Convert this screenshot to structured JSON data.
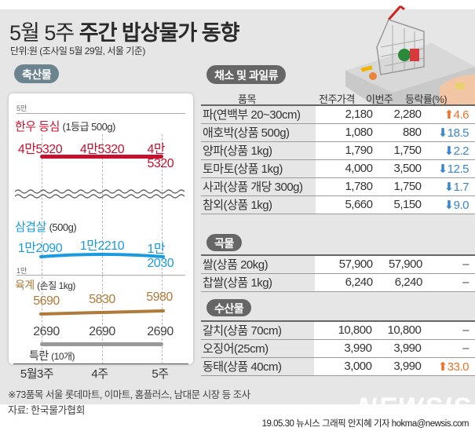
{
  "header": {
    "title_light": "5월 5주",
    "title_bold": "주간 밥상물가 동향",
    "unit": "단위:원 (조사일 5월 29일, 서울 기준)"
  },
  "sections": {
    "livestock": "축산물",
    "vegetables": "채소 및 과일류",
    "grains": "곡물",
    "seafood": "수산물"
  },
  "table_headers": {
    "item": "품목",
    "prev": "전주가격",
    "cur": "이번주",
    "change": "등락률(%)"
  },
  "chart_data": {
    "type": "line",
    "title": "축산물",
    "categories": [
      "5월3주",
      "4주",
      "5주"
    ],
    "axis_labels": {
      "upper_break": "5만",
      "lower_break": "1만"
    },
    "series": [
      {
        "name": "한우 등심",
        "unit": "(1등급 500g)",
        "color": "#c8102e",
        "values": [
          45320,
          45320,
          45320
        ],
        "labels": [
          "4만5320",
          "4만5320",
          "4만5320"
        ]
      },
      {
        "name": "삼겹살",
        "unit": "(500g)",
        "color": "#1a9be0",
        "values": [
          12090,
          12210,
          12030
        ],
        "labels": [
          "1만2090",
          "1만2210",
          "1만2030"
        ]
      },
      {
        "name": "육계",
        "unit": "(손질 1kg)",
        "color": "#b07a3a",
        "values": [
          5690,
          5830,
          5980
        ],
        "labels": [
          "5690",
          "5830",
          "5980"
        ]
      },
      {
        "name": "특란",
        "unit": "(10개)",
        "color": "#999999",
        "values": [
          2690,
          2690,
          2690
        ],
        "labels": [
          "2690",
          "2690",
          "2690"
        ]
      }
    ],
    "grid": "vertical dashed"
  },
  "vegetables": [
    {
      "item": "파(연백부 20~30cm)",
      "prev": "2,180",
      "cur": "2,280",
      "dir": "up",
      "change": "4.6"
    },
    {
      "item": "애호박(상품 500g)",
      "prev": "1,080",
      "cur": "880",
      "dir": "down",
      "change": "18.5"
    },
    {
      "item": "양파(상품 1kg)",
      "prev": "1,790",
      "cur": "1,750",
      "dir": "down",
      "change": "2.2"
    },
    {
      "item": "토마토(상품 1kg)",
      "prev": "4,000",
      "cur": "3,500",
      "dir": "down",
      "change": "12.5"
    },
    {
      "item": "사과(상품 개당 300g)",
      "prev": "1,780",
      "cur": "1,750",
      "dir": "down",
      "change": "1.7"
    },
    {
      "item": "참외(상품 1kg)",
      "prev": "5,660",
      "cur": "5,150",
      "dir": "down",
      "change": "9.0"
    }
  ],
  "grains": [
    {
      "item": "쌀(상품 20kg)",
      "prev": "57,900",
      "cur": "57,900",
      "dir": "none",
      "change": "–"
    },
    {
      "item": "찹쌀(상품 1kg)",
      "prev": "6,240",
      "cur": "6,240",
      "dir": "none",
      "change": "–"
    }
  ],
  "seafood": [
    {
      "item": "갈치(상품 70cm)",
      "prev": "10,800",
      "cur": "10,800",
      "dir": "none",
      "change": "–"
    },
    {
      "item": "오징어(25cm)",
      "prev": "3,990",
      "cur": "3,990",
      "dir": "none",
      "change": "–"
    },
    {
      "item": "동태(상품 40cm)",
      "prev": "3,000",
      "cur": "3,990",
      "dir": "up",
      "change": "33.0"
    }
  ],
  "footer": {
    "note": "※73품목  서울 롯데마트, 이마트, 홈플러스, 남대문 시장 등 조사",
    "source": "자료:  한국물가협회",
    "logo": "NEWSIS",
    "credit": "19.05.30 뉴시스 그래픽 안지혜 기자 hokma@newsis.com"
  },
  "arrows": {
    "up": "⬆",
    "down": "⬇"
  }
}
